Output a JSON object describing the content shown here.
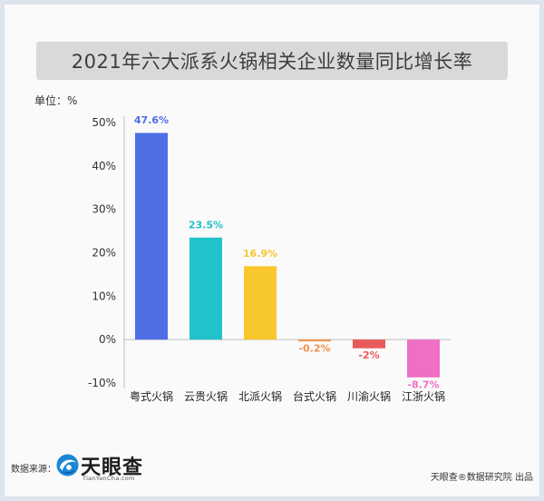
{
  "chart_data": {
    "type": "bar",
    "title": "2021年六大派系火锅相关企业数量同比增长率",
    "ylabel": "单位：%",
    "categories": [
      "粤式火锅",
      "云贵火锅",
      "北派火锅",
      "台式火锅",
      "川渝火锅",
      "江浙火锅"
    ],
    "values": [
      47.6,
      23.5,
      16.9,
      -0.2,
      -2,
      -8.7
    ],
    "data_labels": [
      "47.6%",
      "23.5%",
      "16.9%",
      "-0.2%",
      "-2%",
      "-8.7%"
    ],
    "bar_colors": [
      "#4e6ee4",
      "#22c2cb",
      "#f8c72e",
      "#f0924a",
      "#e95a5a",
      "#f06ec5"
    ],
    "yticks": [
      50,
      40,
      30,
      20,
      10,
      0,
      -10
    ],
    "ytick_labels": [
      "50%",
      "40%",
      "30%",
      "20%",
      "10%",
      "0%",
      "-10%"
    ],
    "ylim": [
      -10,
      50
    ],
    "grid": false
  },
  "footer": {
    "source_label": "数据来源：",
    "logo_name": "天眼查",
    "logo_domain": "TianYanCha.com",
    "credit": "天眼查®数据研究院 出品"
  },
  "icons": {
    "logo": "tianyancha-logo-icon"
  },
  "colors": {
    "title_box": "#d9d9d9",
    "axis": "#bdbdbd",
    "brand": "#1b86d6"
  }
}
